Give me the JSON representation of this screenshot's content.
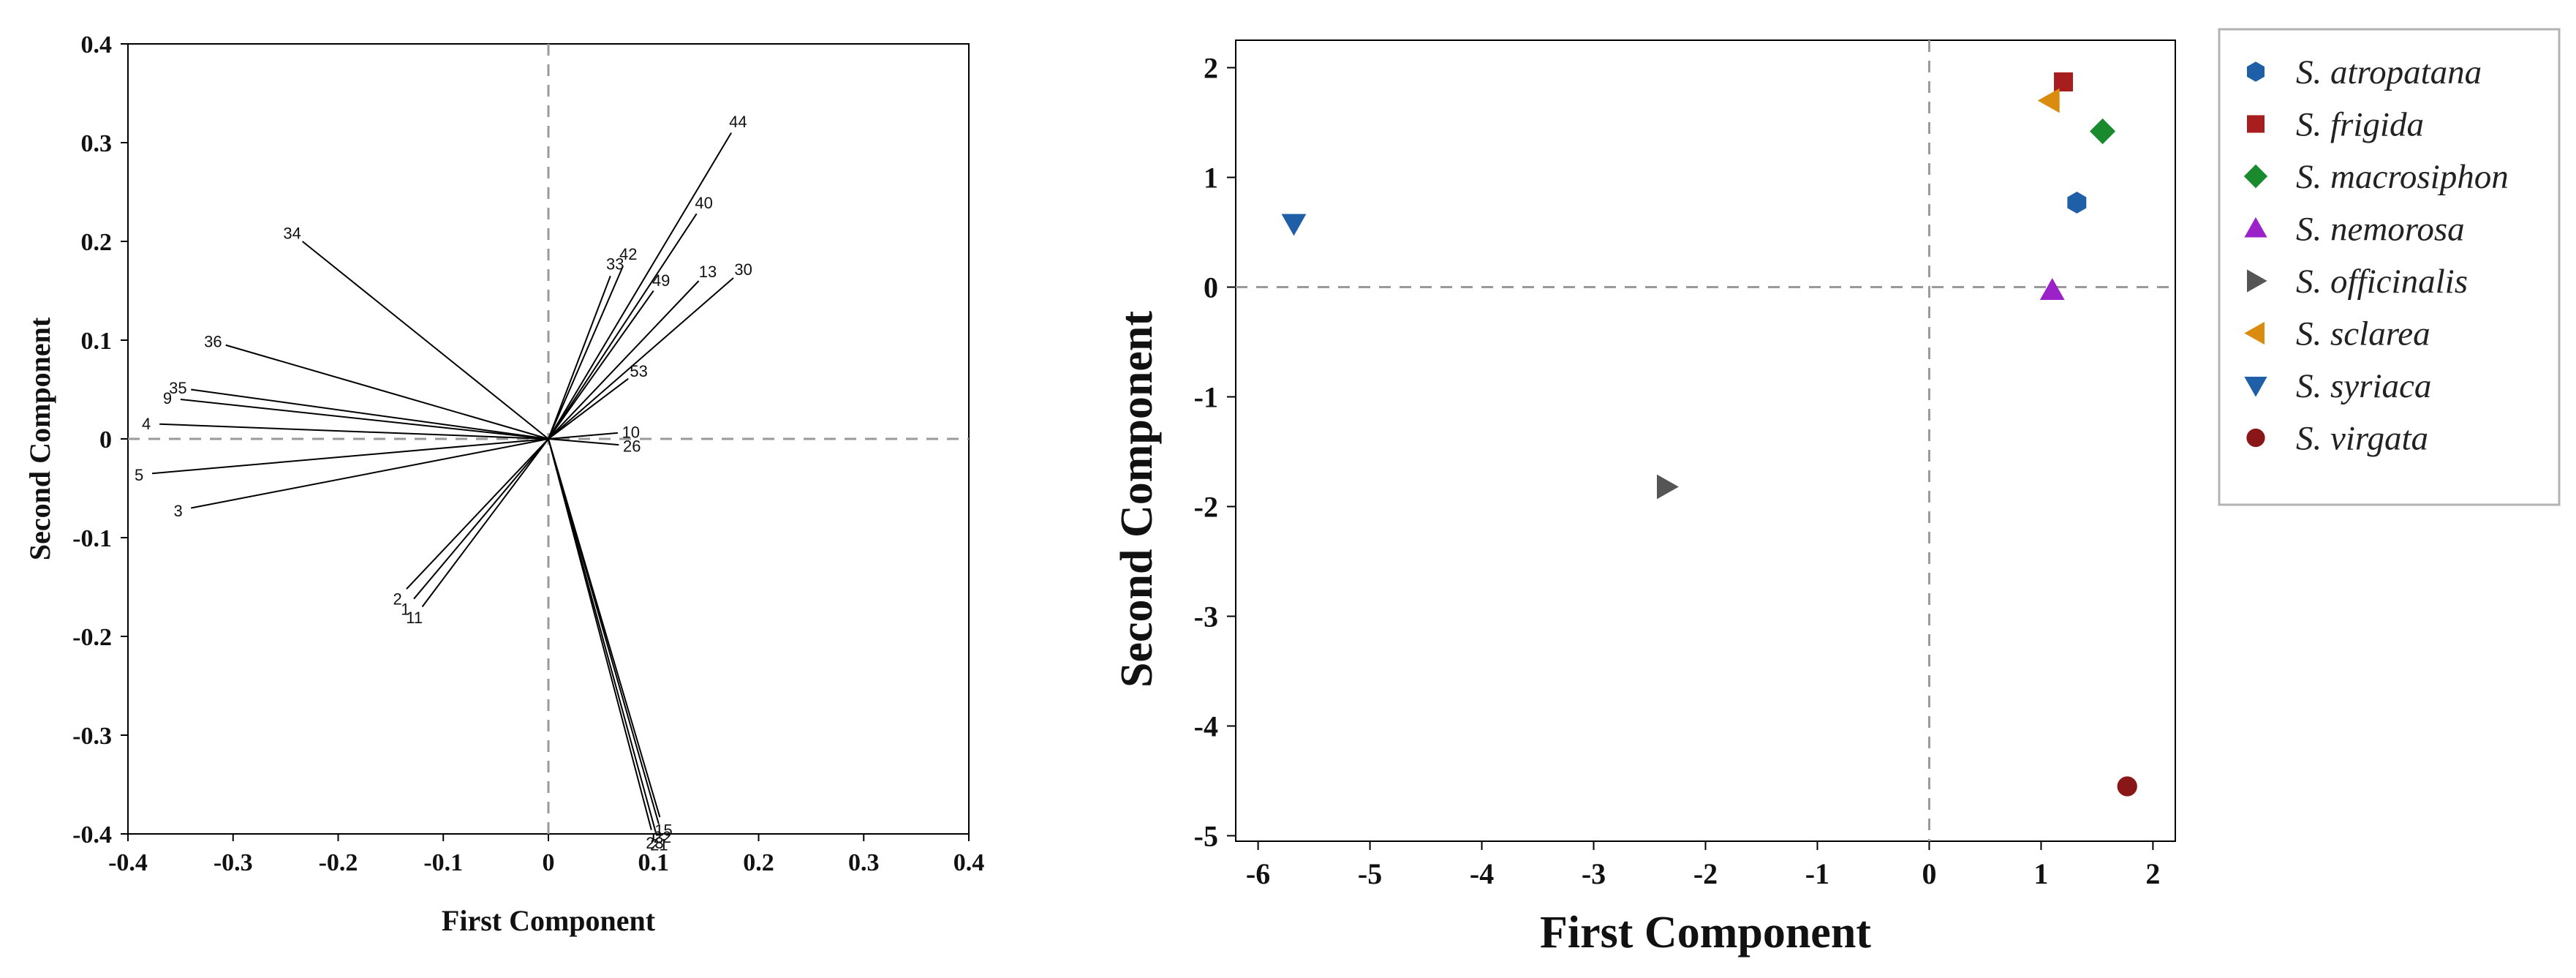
{
  "chart_data": [
    {
      "type": "loading-plot",
      "xlabel": "First Component",
      "ylabel": "Second Component",
      "xlim": [
        -0.4,
        0.4
      ],
      "ylim": [
        -0.4,
        0.4
      ],
      "xticks": [
        "-0.4",
        "-0.3",
        "-0.2",
        "-0.1",
        "0",
        "0.1",
        "0.2",
        "0.3",
        "0.4"
      ],
      "yticks": [
        "0.4",
        "0.3",
        "0.2",
        "0.1",
        "0",
        "-0.1",
        "-0.2",
        "-0.3",
        "-0.4"
      ],
      "reference_lines": {
        "x": 0,
        "y": 0,
        "style": "dashed"
      },
      "vectors": [
        {
          "label": "44",
          "x": 0.174,
          "y": 0.31
        },
        {
          "label": "40",
          "x": 0.141,
          "y": 0.228
        },
        {
          "label": "42",
          "x": 0.071,
          "y": 0.175
        },
        {
          "label": "33",
          "x": 0.059,
          "y": 0.165
        },
        {
          "label": "49",
          "x": 0.1,
          "y": 0.15
        },
        {
          "label": "13",
          "x": 0.143,
          "y": 0.16
        },
        {
          "label": "30",
          "x": 0.176,
          "y": 0.163
        },
        {
          "label": "53",
          "x": 0.076,
          "y": 0.061
        },
        {
          "label": "10",
          "x": 0.066,
          "y": 0.006
        },
        {
          "label": "26",
          "x": 0.067,
          "y": -0.006
        },
        {
          "label": "34",
          "x": -0.234,
          "y": 0.2
        },
        {
          "label": "36",
          "x": -0.307,
          "y": 0.095
        },
        {
          "label": "35",
          "x": -0.34,
          "y": 0.05
        },
        {
          "label": "9",
          "x": -0.35,
          "y": 0.04
        },
        {
          "label": "4",
          "x": -0.37,
          "y": 0.015
        },
        {
          "label": "5",
          "x": -0.377,
          "y": -0.035
        },
        {
          "label": "3",
          "x": -0.34,
          "y": -0.07
        },
        {
          "label": "2",
          "x": -0.135,
          "y": -0.152
        },
        {
          "label": "1",
          "x": -0.128,
          "y": -0.162
        },
        {
          "label": "11",
          "x": -0.12,
          "y": -0.17
        },
        {
          "label": "15",
          "x": 0.106,
          "y": -0.383
        },
        {
          "label": "22",
          "x": 0.105,
          "y": -0.39
        },
        {
          "label": "23",
          "x": 0.098,
          "y": -0.396
        },
        {
          "label": "21",
          "x": 0.102,
          "y": -0.398
        }
      ]
    },
    {
      "type": "scatter",
      "xlabel": "First Component",
      "ylabel": "Second Component",
      "xlim": [
        -6.2,
        2.2
      ],
      "ylim": [
        -5.05,
        2.25
      ],
      "xticks": [
        "-6",
        "-5",
        "-4",
        "-3",
        "-2",
        "-1",
        "0",
        "1",
        "2"
      ],
      "yticks": [
        "2",
        "1",
        "0",
        "-1",
        "-2",
        "-3",
        "-4",
        "-5"
      ],
      "reference_lines": {
        "x": 0,
        "y": 0,
        "style": "dashed"
      },
      "legend_position": "right",
      "series": [
        {
          "name": "S. atropatana",
          "marker": "hexagon",
          "color": "#1f5fa8",
          "x": 1.32,
          "y": 0.77
        },
        {
          "name": "S. frigida",
          "marker": "square",
          "color": "#a81d1d",
          "x": 1.2,
          "y": 1.87
        },
        {
          "name": "S. macrosiphon",
          "marker": "diamond",
          "color": "#1a8a2f",
          "x": 1.55,
          "y": 1.42
        },
        {
          "name": "S. nemorosa",
          "marker": "triangle-up",
          "color": "#9b22c9",
          "x": 1.1,
          "y": -0.03
        },
        {
          "name": "S. officinalis",
          "marker": "triangle-right",
          "color": "#555555",
          "x": -2.35,
          "y": -1.82
        },
        {
          "name": "S. sclarea",
          "marker": "triangle-left",
          "color": "#d98c10",
          "x": 1.08,
          "y": 1.7
        },
        {
          "name": "S. syriaca",
          "marker": "triangle-down",
          "color": "#1f5fa8",
          "x": -5.68,
          "y": 0.58
        },
        {
          "name": "S. virgata",
          "marker": "circle",
          "color": "#8a1717",
          "x": 1.77,
          "y": -4.55
        }
      ]
    }
  ]
}
